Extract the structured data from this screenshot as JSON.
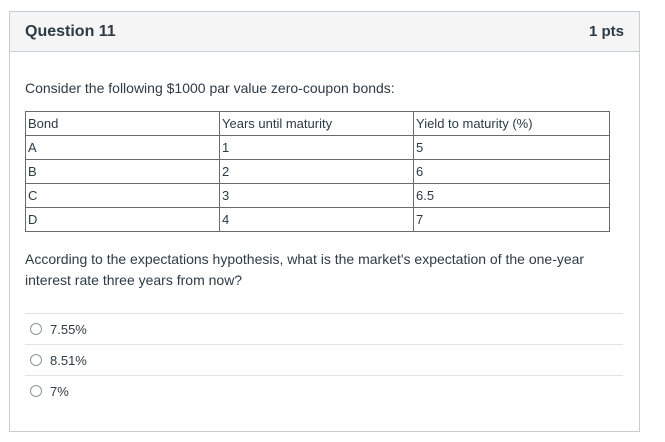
{
  "question": {
    "title": "Question 11",
    "points": "1 pts",
    "prompt": "Consider the following $1000 par value zero-coupon bonds:",
    "table": {
      "headers": [
        "Bond",
        "Years until maturity",
        "Yield to maturity (%)"
      ],
      "rows": [
        [
          "A",
          "1",
          "5"
        ],
        [
          "B",
          "2",
          "6"
        ],
        [
          "C",
          "3",
          "6.5"
        ],
        [
          "D",
          "4",
          "7"
        ]
      ]
    },
    "text": "According to the expectations hypothesis, what is the market's expectation of the one-year interest rate three years from now?",
    "answers": [
      {
        "label": "7.55%"
      },
      {
        "label": "8.51%"
      },
      {
        "label": "7%"
      }
    ]
  }
}
